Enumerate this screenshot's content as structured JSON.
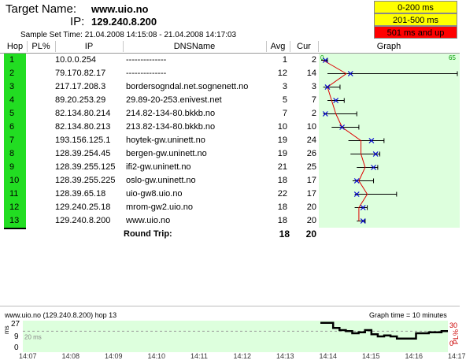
{
  "header": {
    "target_label": "Target Name:",
    "target_value": "www.uio.no",
    "ip_label": "IP:",
    "ip_value": "129.240.8.200",
    "sample_label": "Sample Set Time:",
    "sample_value": "21.04.2008 14:15:08 - 21.04.2008 14:17:03"
  },
  "legend": [
    {
      "label": "0-200 ms",
      "color": "#ffff00"
    },
    {
      "label": "201-500 ms",
      "color": "#ffff00"
    },
    {
      "label": "501 ms and up",
      "color": "#ff0000"
    }
  ],
  "columns": {
    "hop": "Hop",
    "pl": "PL%",
    "ip": "IP",
    "dnsname": "DNSName",
    "avg": "Avg",
    "cur": "Cur",
    "graph": "Graph"
  },
  "graph_scale": {
    "min_label": "0",
    "max_label": "65",
    "max": 65
  },
  "rows": [
    {
      "hop": "1",
      "ip": "10.0.0.254",
      "dns": "--------------",
      "avg": "1",
      "cur": "2",
      "min": 0,
      "max": 3
    },
    {
      "hop": "2",
      "ip": "79.170.82.17",
      "dns": "--------------",
      "avg": "12",
      "cur": "14",
      "min": 3,
      "max": 65
    },
    {
      "hop": "3",
      "ip": "217.17.208.3",
      "dns": "bordersogndal.net.sognenett.no",
      "avg": "3",
      "cur": "3",
      "min": 1,
      "max": 9
    },
    {
      "hop": "4",
      "ip": "89.20.253.29",
      "dns": "29.89-20-253.enivest.net",
      "avg": "5",
      "cur": "7",
      "min": 3,
      "max": 11
    },
    {
      "hop": "5",
      "ip": "82.134.80.214",
      "dns": "214.82-134-80.bkkb.no",
      "avg": "7",
      "cur": "2",
      "min": 1,
      "max": 17
    },
    {
      "hop": "6",
      "ip": "82.134.80.213",
      "dns": "213.82-134-80.bkkb.no",
      "avg": "10",
      "cur": "10",
      "min": 5,
      "max": 18
    },
    {
      "hop": "7",
      "ip": "193.156.125.1",
      "dns": "hoytek-gw.uninett.no",
      "avg": "19",
      "cur": "24",
      "min": 13,
      "max": 30
    },
    {
      "hop": "8",
      "ip": "128.39.254.45",
      "dns": "bergen-gw.uninett.no",
      "avg": "19",
      "cur": "26",
      "min": 14,
      "max": 28
    },
    {
      "hop": "9",
      "ip": "128.39.255.125",
      "dns": "ifi2-gw.uninett.no",
      "avg": "21",
      "cur": "25",
      "min": 17,
      "max": 27
    },
    {
      "hop": "10",
      "ip": "128.39.255.225",
      "dns": "oslo-gw.uninett.no",
      "avg": "18",
      "cur": "17",
      "min": 15,
      "max": 25
    },
    {
      "hop": "11",
      "ip": "128.39.65.18",
      "dns": "uio-gw8.uio.no",
      "avg": "22",
      "cur": "17",
      "min": 16,
      "max": 36
    },
    {
      "hop": "12",
      "ip": "129.240.25.18",
      "dns": "mrom-gw2.uio.no",
      "avg": "18",
      "cur": "20",
      "min": 16,
      "max": 22
    },
    {
      "hop": "13",
      "ip": "129.240.8.200",
      "dns": "www.uio.no",
      "avg": "18",
      "cur": "20",
      "min": 17,
      "max": 21
    }
  ],
  "round_trip": {
    "label": "Round Trip:",
    "avg": "18",
    "cur": "20"
  },
  "history": {
    "title": "www.uio.no (129.240.8.200) hop 13",
    "graph_time": "Graph time = 10 minutes",
    "ms_label": "ms",
    "pl_label": "PL%",
    "y_max": "27",
    "y_mid": "9",
    "y_zero": "0",
    "threshold_label": "20 ms",
    "pl_max": "30",
    "pl_zero": "0",
    "x_labels": [
      "14:07",
      "14:08",
      "14:09",
      "14:10",
      "14:11",
      "14:12",
      "14:13",
      "14:14",
      "14:15",
      "14:16",
      "14:17"
    ],
    "series": [
      28,
      28,
      23,
      21,
      20,
      18,
      19,
      21,
      17,
      15,
      16,
      15,
      13,
      13,
      13,
      18,
      18,
      19,
      19,
      20
    ]
  }
}
